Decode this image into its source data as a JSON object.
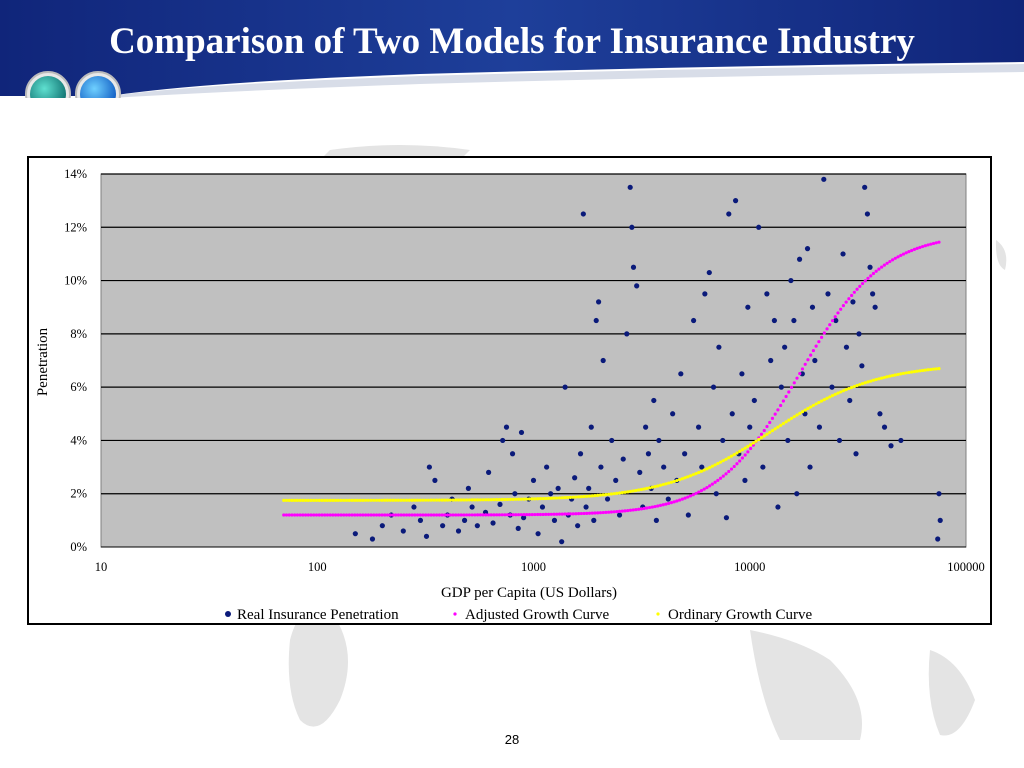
{
  "slide": {
    "title": "Comparison of Two Models for Insurance Industry",
    "page_number": "28"
  },
  "colors": {
    "header_blue": "#1a3a8a",
    "plot_bg": "#c0c0c0",
    "real": "#0a1a7a",
    "adjusted": "#ff00ff",
    "ordinary": "#ffff00"
  },
  "chart_data": {
    "type": "scatter",
    "title": "",
    "xlabel": "GDP per Capita (US Dollars)",
    "ylabel": "Penetration",
    "x_scale": "log",
    "xlim": [
      10,
      100000
    ],
    "ylim": [
      0,
      0.14
    ],
    "x_ticks": [
      "10",
      "100",
      "1000",
      "10000",
      "100000"
    ],
    "y_ticks": [
      "0%",
      "2%",
      "4%",
      "6%",
      "8%",
      "10%",
      "12%",
      "14%"
    ],
    "grid": "horizontal",
    "legend": "bottom",
    "series": [
      {
        "name": "Real Insurance Penetration",
        "marker": "dot",
        "color": "#0a1a7a",
        "points": [
          [
            150,
            0.005
          ],
          [
            180,
            0.003
          ],
          [
            200,
            0.008
          ],
          [
            220,
            0.012
          ],
          [
            250,
            0.006
          ],
          [
            280,
            0.015
          ],
          [
            300,
            0.01
          ],
          [
            320,
            0.004
          ],
          [
            330,
            0.03
          ],
          [
            350,
            0.025
          ],
          [
            380,
            0.008
          ],
          [
            400,
            0.012
          ],
          [
            420,
            0.018
          ],
          [
            450,
            0.006
          ],
          [
            480,
            0.01
          ],
          [
            500,
            0.022
          ],
          [
            520,
            0.015
          ],
          [
            550,
            0.008
          ],
          [
            600,
            0.013
          ],
          [
            620,
            0.028
          ],
          [
            650,
            0.009
          ],
          [
            700,
            0.016
          ],
          [
            720,
            0.04
          ],
          [
            750,
            0.045
          ],
          [
            780,
            0.012
          ],
          [
            800,
            0.035
          ],
          [
            820,
            0.02
          ],
          [
            850,
            0.007
          ],
          [
            880,
            0.043
          ],
          [
            900,
            0.011
          ],
          [
            950,
            0.018
          ],
          [
            1000,
            0.025
          ],
          [
            1050,
            0.005
          ],
          [
            1100,
            0.015
          ],
          [
            1150,
            0.03
          ],
          [
            1200,
            0.02
          ],
          [
            1250,
            0.01
          ],
          [
            1300,
            0.022
          ],
          [
            1350,
            0.002
          ],
          [
            1400,
            0.06
          ],
          [
            1450,
            0.012
          ],
          [
            1500,
            0.018
          ],
          [
            1550,
            0.026
          ],
          [
            1600,
            0.008
          ],
          [
            1650,
            0.035
          ],
          [
            1700,
            0.125
          ],
          [
            1750,
            0.015
          ],
          [
            1800,
            0.022
          ],
          [
            1850,
            0.045
          ],
          [
            1900,
            0.01
          ],
          [
            1950,
            0.085
          ],
          [
            2000,
            0.092
          ],
          [
            2050,
            0.03
          ],
          [
            2100,
            0.07
          ],
          [
            2200,
            0.018
          ],
          [
            2300,
            0.04
          ],
          [
            2400,
            0.025
          ],
          [
            2500,
            0.012
          ],
          [
            2600,
            0.033
          ],
          [
            2700,
            0.08
          ],
          [
            2800,
            0.135
          ],
          [
            2850,
            0.12
          ],
          [
            2900,
            0.105
          ],
          [
            3000,
            0.098
          ],
          [
            3100,
            0.028
          ],
          [
            3200,
            0.015
          ],
          [
            3300,
            0.045
          ],
          [
            3400,
            0.035
          ],
          [
            3500,
            0.022
          ],
          [
            3600,
            0.055
          ],
          [
            3700,
            0.01
          ],
          [
            3800,
            0.04
          ],
          [
            4000,
            0.03
          ],
          [
            4200,
            0.018
          ],
          [
            4400,
            0.05
          ],
          [
            4600,
            0.025
          ],
          [
            4800,
            0.065
          ],
          [
            5000,
            0.035
          ],
          [
            5200,
            0.012
          ],
          [
            5500,
            0.085
          ],
          [
            5800,
            0.045
          ],
          [
            6000,
            0.03
          ],
          [
            6200,
            0.095
          ],
          [
            6500,
            0.103
          ],
          [
            6800,
            0.06
          ],
          [
            7000,
            0.02
          ],
          [
            7200,
            0.075
          ],
          [
            7500,
            0.04
          ],
          [
            7800,
            0.011
          ],
          [
            8000,
            0.125
          ],
          [
            8300,
            0.05
          ],
          [
            8600,
            0.13
          ],
          [
            8900,
            0.035
          ],
          [
            9200,
            0.065
          ],
          [
            9500,
            0.025
          ],
          [
            9800,
            0.09
          ],
          [
            10000,
            0.045
          ],
          [
            10500,
            0.055
          ],
          [
            11000,
            0.12
          ],
          [
            11500,
            0.03
          ],
          [
            12000,
            0.095
          ],
          [
            12500,
            0.07
          ],
          [
            13000,
            0.085
          ],
          [
            13500,
            0.015
          ],
          [
            14000,
            0.06
          ],
          [
            14500,
            0.075
          ],
          [
            15000,
            0.04
          ],
          [
            15500,
            0.1
          ],
          [
            16000,
            0.085
          ],
          [
            16500,
            0.02
          ],
          [
            17000,
            0.108
          ],
          [
            17500,
            0.065
          ],
          [
            18000,
            0.05
          ],
          [
            18500,
            0.112
          ],
          [
            19000,
            0.03
          ],
          [
            19500,
            0.09
          ],
          [
            20000,
            0.07
          ],
          [
            21000,
            0.045
          ],
          [
            22000,
            0.138
          ],
          [
            23000,
            0.095
          ],
          [
            24000,
            0.06
          ],
          [
            25000,
            0.085
          ],
          [
            26000,
            0.04
          ],
          [
            27000,
            0.11
          ],
          [
            28000,
            0.075
          ],
          [
            29000,
            0.055
          ],
          [
            30000,
            0.092
          ],
          [
            31000,
            0.035
          ],
          [
            32000,
            0.08
          ],
          [
            33000,
            0.068
          ],
          [
            34000,
            0.135
          ],
          [
            35000,
            0.125
          ],
          [
            36000,
            0.105
          ],
          [
            37000,
            0.095
          ],
          [
            38000,
            0.09
          ],
          [
            40000,
            0.05
          ],
          [
            42000,
            0.045
          ],
          [
            45000,
            0.038
          ],
          [
            50000,
            0.04
          ],
          [
            75000,
            0.02
          ],
          [
            76000,
            0.01
          ],
          [
            74000,
            0.003
          ]
        ]
      },
      {
        "name": "Adjusted Growth Curve",
        "marker": "dash-dot",
        "color": "#ff00ff",
        "curve": {
          "low": 0.012,
          "high": 0.118,
          "mid_x": 17000,
          "steepness": 5.2,
          "x_range": [
            70,
            75000
          ]
        }
      },
      {
        "name": "Ordinary Growth Curve",
        "marker": "dash-dot",
        "color": "#ffff00",
        "curve": {
          "low": 0.0175,
          "high": 0.069,
          "mid_x": 12500,
          "steepness": 4.1,
          "x_range": [
            70,
            75000
          ]
        }
      }
    ]
  }
}
